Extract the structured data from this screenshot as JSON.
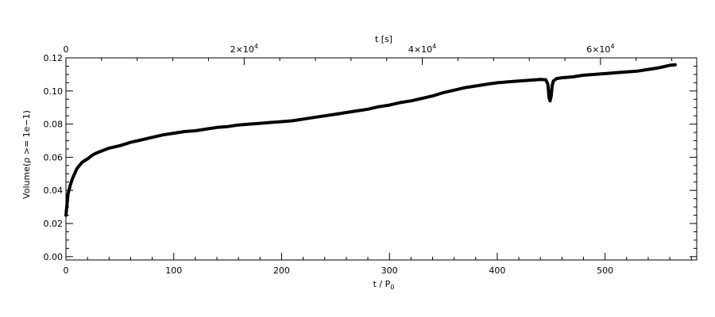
{
  "chart_data": {
    "type": "line",
    "xlabel": "t / P",
    "xlabel_sub": "0",
    "top_xlabel": "t [s]",
    "ylabel": "Volume(ρ >= 1e−1)",
    "xlim": [
      0,
      585
    ],
    "ylim": [
      -0.002,
      0.12
    ],
    "top_xlim": [
      0,
      70800
    ],
    "x_ticks": [
      0,
      100,
      200,
      300,
      400,
      500
    ],
    "x_tick_labels": [
      "0",
      "100",
      "200",
      "300",
      "400",
      "500"
    ],
    "y_ticks": [
      0.0,
      0.02,
      0.04,
      0.06,
      0.08,
      0.1,
      0.12
    ],
    "y_tick_labels": [
      "0.00",
      "0.02",
      "0.04",
      "0.06",
      "0.08",
      "0.10",
      "0.12"
    ],
    "top_ticks": [
      0,
      20000,
      40000,
      60000
    ],
    "top_tick_labels": [
      {
        "base": "0",
        "exp": ""
      },
      {
        "base": "2×10",
        "exp": "4"
      },
      {
        "base": "4×10",
        "exp": "4"
      },
      {
        "base": "6×10",
        "exp": "4"
      }
    ],
    "grid": false,
    "series": [
      {
        "color": "#000000",
        "x": [
          0,
          1,
          2,
          4,
          6,
          8,
          10,
          15,
          20,
          25,
          30,
          40,
          50,
          60,
          70,
          80,
          90,
          100,
          110,
          120,
          130,
          140,
          150,
          160,
          170,
          180,
          190,
          200,
          210,
          220,
          230,
          240,
          250,
          260,
          270,
          280,
          290,
          300,
          310,
          320,
          330,
          340,
          350,
          360,
          370,
          380,
          390,
          400,
          410,
          420,
          430,
          440,
          445,
          447,
          448,
          449,
          450,
          451,
          452,
          455,
          460,
          470,
          480,
          490,
          500,
          510,
          520,
          530,
          540,
          550,
          560,
          565
        ],
        "y": [
          0.025,
          0.032,
          0.038,
          0.043,
          0.047,
          0.05,
          0.053,
          0.057,
          0.059,
          0.0615,
          0.063,
          0.0655,
          0.067,
          0.069,
          0.0705,
          0.072,
          0.0735,
          0.0745,
          0.0755,
          0.076,
          0.077,
          0.078,
          0.0785,
          0.0795,
          0.08,
          0.0805,
          0.081,
          0.0815,
          0.082,
          0.083,
          0.084,
          0.085,
          0.086,
          0.087,
          0.088,
          0.089,
          0.0905,
          0.0915,
          0.093,
          0.094,
          0.0955,
          0.097,
          0.099,
          0.1005,
          0.102,
          0.103,
          0.104,
          0.105,
          0.1055,
          0.106,
          0.1065,
          0.107,
          0.1068,
          0.104,
          0.096,
          0.094,
          0.097,
          0.1035,
          0.106,
          0.1075,
          0.108,
          0.1085,
          0.1095,
          0.11,
          0.1105,
          0.111,
          0.1115,
          0.112,
          0.113,
          0.114,
          0.1155,
          0.1158
        ]
      }
    ]
  }
}
